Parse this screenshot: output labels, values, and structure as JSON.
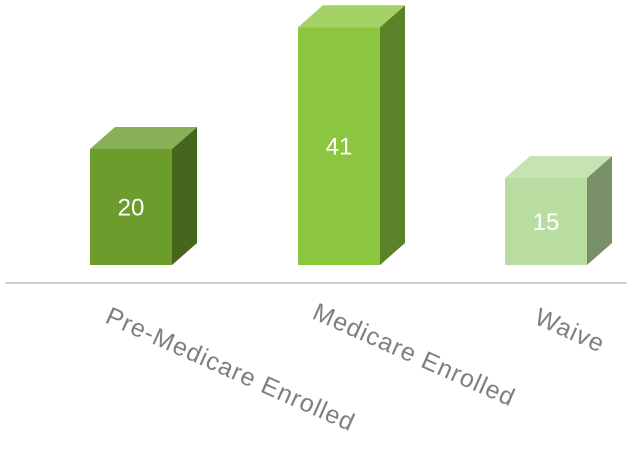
{
  "chart_data": {
    "type": "bar3d",
    "categories": [
      "Pre-Medicare Enrolled",
      "Medicare Enrolled",
      "Waive"
    ],
    "values": [
      20,
      41,
      15
    ],
    "colors": [
      "#6b9c2c",
      "#8cc63f",
      "#b9dca0"
    ]
  }
}
